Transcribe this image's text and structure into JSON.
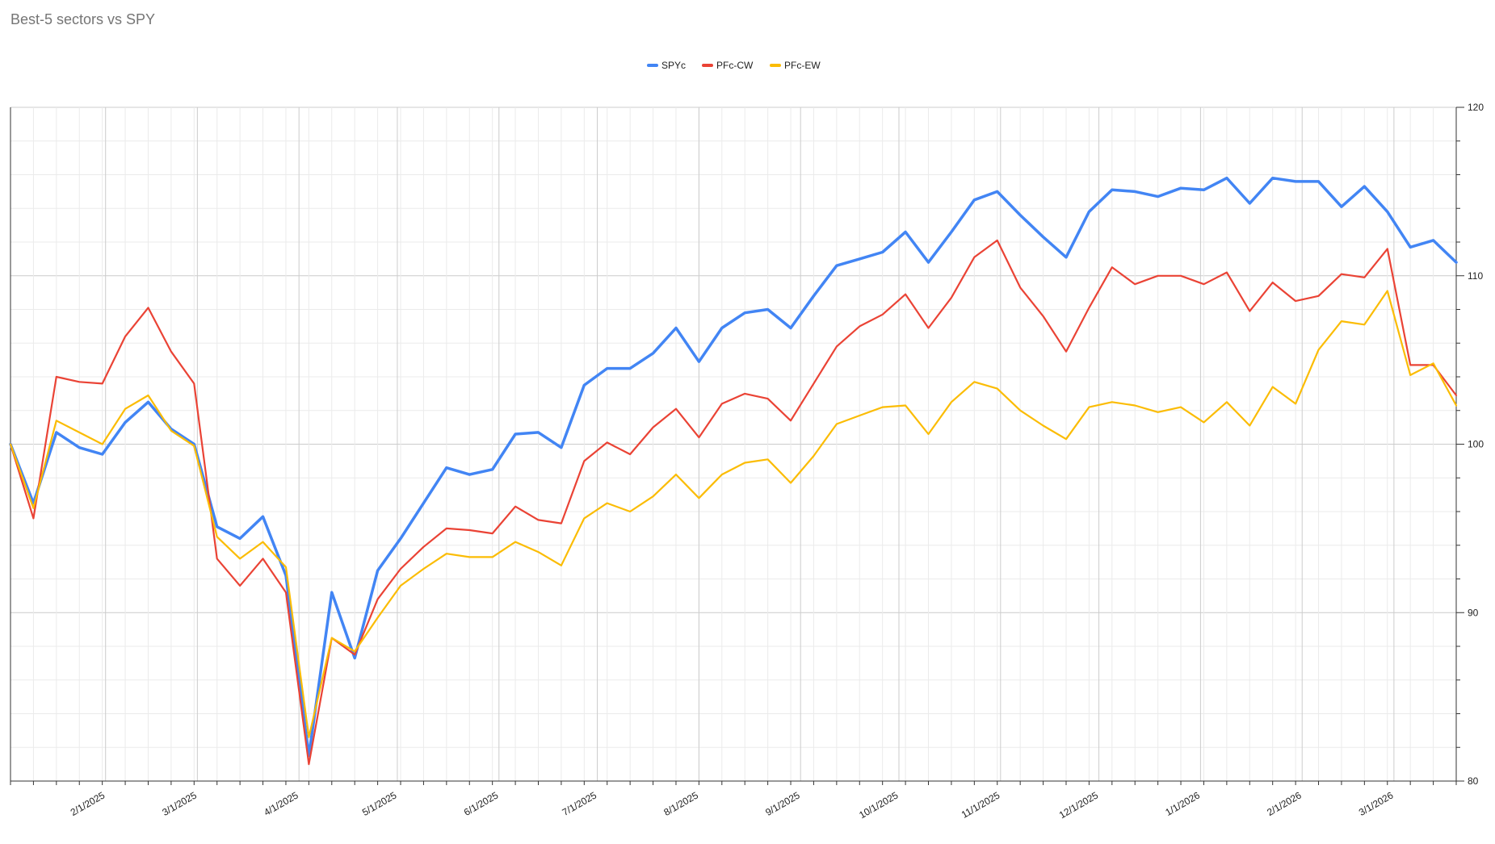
{
  "chart_data": {
    "type": "line",
    "title": "Best-5 sectors vs SPY",
    "legend_position": "top",
    "grid": true,
    "y_axis_side": "right",
    "ylim": [
      80,
      120
    ],
    "y_ticks": [
      80,
      90,
      100,
      110,
      120
    ],
    "x_tick_labels": [
      "2/1/2025",
      "3/1/2025",
      "4/1/2025",
      "5/1/2025",
      "6/1/2025",
      "7/1/2025",
      "8/1/2025",
      "9/1/2025",
      "10/1/2025",
      "11/1/2025",
      "12/1/2025",
      "1/1/2026",
      "2/1/2026",
      "3/1/2026"
    ],
    "x": [
      "1/3/2025",
      "1/10/2025",
      "1/17/2025",
      "1/24/2025",
      "1/31/2025",
      "2/7/2025",
      "2/14/2025",
      "2/21/2025",
      "2/28/2025",
      "3/7/2025",
      "3/14/2025",
      "3/21/2025",
      "3/28/2025",
      "4/4/2025",
      "4/11/2025",
      "4/18/2025",
      "4/25/2025",
      "5/2/2025",
      "5/9/2025",
      "5/16/2025",
      "5/23/2025",
      "5/30/2025",
      "6/6/2025",
      "6/13/2025",
      "6/20/2025",
      "6/27/2025",
      "7/4/2025",
      "7/11/2025",
      "7/18/2025",
      "7/25/2025",
      "8/1/2025",
      "8/8/2025",
      "8/15/2025",
      "8/22/2025",
      "8/29/2025",
      "9/5/2025",
      "9/12/2025",
      "9/19/2025",
      "9/26/2025",
      "10/3/2025",
      "10/10/2025",
      "10/17/2025",
      "10/24/2025",
      "10/31/2025",
      "11/7/2025",
      "11/14/2025",
      "11/21/2025",
      "11/28/2025",
      "12/5/2025",
      "12/12/2025",
      "12/19/2025",
      "12/26/2025",
      "1/2/2026",
      "1/9/2026",
      "1/16/2026",
      "1/23/2026",
      "1/30/2026",
      "2/6/2026",
      "2/13/2026",
      "2/20/2026",
      "2/27/2026",
      "3/6/2026",
      "3/13/2026",
      "3/20/2026"
    ],
    "series": [
      {
        "name": "SPYc",
        "color": "#4285F4",
        "width": 3.5,
        "values": [
          100,
          96.5,
          100.7,
          99.8,
          99.4,
          101.3,
          102.5,
          100.9,
          100,
          95.1,
          94.4,
          95.7,
          92.2,
          81.5,
          91.2,
          87.3,
          92.5,
          94.4,
          96.5,
          98.6,
          98.2,
          98.5,
          100.6,
          100.7,
          99.8,
          103.5,
          104.5,
          104.5,
          105.4,
          106.9,
          104.9,
          106.9,
          107.8,
          108,
          106.9,
          108.8,
          110.6,
          111,
          111.4,
          112.6,
          110.8,
          112.6,
          114.5,
          115,
          113.6,
          112.3,
          111.1,
          113.8,
          115.1,
          115,
          114.7,
          115.2,
          115.1,
          115.8,
          114.3,
          115.8,
          115.6,
          115.6,
          114.1,
          115.3,
          113.8,
          111.7,
          112.1,
          110.8
        ]
      },
      {
        "name": "PFc-CW",
        "color": "#EA4335",
        "width": 2.2,
        "values": [
          100,
          95.6,
          104,
          103.7,
          103.6,
          106.4,
          108.1,
          105.5,
          103.6,
          93.2,
          91.6,
          93.2,
          91.2,
          81,
          88.5,
          87.5,
          90.8,
          92.6,
          93.9,
          95,
          94.9,
          94.7,
          96.3,
          95.5,
          95.3,
          99,
          100.1,
          99.4,
          101,
          102.1,
          100.4,
          102.4,
          103,
          102.7,
          101.4,
          103.6,
          105.8,
          107,
          107.7,
          108.9,
          106.9,
          108.7,
          111.1,
          112.1,
          109.3,
          107.6,
          105.5,
          108.1,
          110.5,
          109.5,
          110,
          110,
          109.5,
          110.2,
          107.9,
          109.6,
          108.5,
          108.8,
          110.1,
          109.9,
          111.6,
          104.7,
          104.7,
          102.9
        ]
      },
      {
        "name": "PFc-EW",
        "color": "#FBBC04",
        "width": 2.2,
        "values": [
          100,
          96.2,
          101.4,
          100.7,
          100,
          102.1,
          102.9,
          100.8,
          99.9,
          94.5,
          93.2,
          94.2,
          92.7,
          82.6,
          88.5,
          87.7,
          89.7,
          91.6,
          92.6,
          93.5,
          93.3,
          93.3,
          94.2,
          93.6,
          92.8,
          95.6,
          96.5,
          96,
          96.9,
          98.2,
          96.8,
          98.2,
          98.9,
          99.1,
          97.7,
          99.3,
          101.2,
          101.7,
          102.2,
          102.3,
          100.6,
          102.5,
          103.7,
          103.3,
          102,
          101.1,
          100.3,
          102.2,
          102.5,
          102.3,
          101.9,
          102.2,
          101.3,
          102.5,
          101.1,
          103.4,
          102.4,
          105.6,
          107.3,
          107.1,
          109.1,
          104.1,
          104.8,
          102.3
        ]
      }
    ]
  }
}
